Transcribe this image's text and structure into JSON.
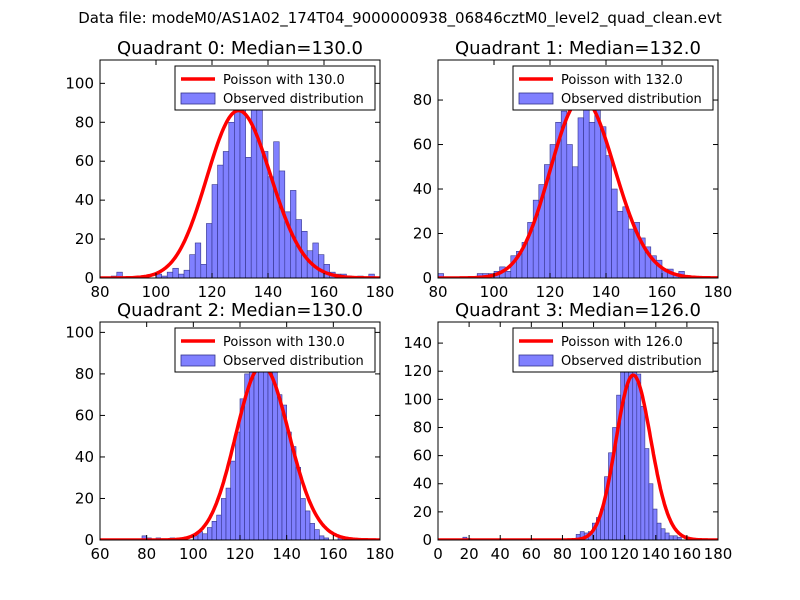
{
  "figure": {
    "suptitle": "Data file: modeM0/AS1A02_174T04_9000000938_06846cztM0_level2_quad_clean.evt"
  },
  "style": {
    "bar_fill": "#8080ff",
    "bar_edge": "#33338a",
    "curve_color": "#ff0000",
    "axes_color": "#000000"
  },
  "chart_data": [
    {
      "type": "bar",
      "title": "Quadrant 0: Median=130.0",
      "xlim": [
        80,
        180
      ],
      "ylim": [
        0,
        112
      ],
      "xticks": [
        80,
        100,
        120,
        140,
        160,
        180
      ],
      "yticks": [
        0,
        20,
        40,
        60,
        80,
        100
      ],
      "bin_start": 80,
      "bin_width": 2,
      "values": [
        0,
        0,
        1,
        3,
        0,
        0,
        0,
        0,
        0,
        0,
        2,
        1,
        3,
        5,
        2,
        4,
        12,
        18,
        7,
        28,
        48,
        58,
        65,
        80,
        95,
        108,
        62,
        90,
        100,
        65,
        52,
        70,
        55,
        34,
        45,
        30,
        24,
        14,
        18,
        12,
        7,
        3,
        2,
        2,
        1,
        0,
        1,
        0,
        2
      ],
      "poisson_mean": 130.0,
      "legend": [
        "Poisson with 130.0",
        "Observed distribution"
      ]
    },
    {
      "type": "bar",
      "title": "Quadrant 1: Median=132.0",
      "xlim": [
        80,
        180
      ],
      "ylim": [
        0,
        98
      ],
      "xticks": [
        80,
        100,
        120,
        140,
        160,
        180
      ],
      "yticks": [
        0,
        20,
        40,
        60,
        80
      ],
      "bin_start": 80,
      "bin_width": 2,
      "values": [
        2,
        0,
        0,
        0,
        0,
        0,
        0,
        2,
        2,
        2,
        3,
        5,
        3,
        10,
        12,
        16,
        25,
        35,
        42,
        51,
        60,
        70,
        75,
        60,
        50,
        72,
        78,
        70,
        84,
        68,
        55,
        40,
        30,
        32,
        22,
        25,
        18,
        14,
        10,
        8,
        4,
        4,
        2,
        3,
        0,
        0,
        0,
        0
      ],
      "poisson_mean": 132.0,
      "legend": [
        "Poisson with 132.0",
        "Observed distribution"
      ]
    },
    {
      "type": "bar",
      "title": "Quadrant 2: Median=130.0",
      "xlim": [
        60,
        180
      ],
      "ylim": [
        0,
        105
      ],
      "xticks": [
        60,
        80,
        100,
        120,
        140,
        160,
        180
      ],
      "yticks": [
        0,
        20,
        40,
        60,
        80,
        100
      ],
      "bin_start": 60,
      "bin_width": 2,
      "values": [
        0,
        0,
        0,
        0,
        0,
        0,
        0,
        0,
        0,
        2,
        1,
        0,
        1,
        0,
        0,
        1,
        0,
        1,
        0,
        0,
        2,
        4,
        3,
        6,
        9,
        12,
        20,
        25,
        38,
        52,
        68,
        80,
        92,
        98,
        95,
        100,
        88,
        85,
        70,
        65,
        52,
        45,
        35,
        20,
        14,
        8,
        5,
        2,
        1,
        0,
        0,
        1,
        0,
        0,
        0,
        0
      ],
      "poisson_mean": 130.0,
      "legend": [
        "Poisson with 130.0",
        "Observed distribution"
      ]
    },
    {
      "type": "bar",
      "title": "Quadrant 3: Median=126.0",
      "xlim": [
        0,
        180
      ],
      "ylim": [
        0,
        155
      ],
      "xticks": [
        0,
        20,
        40,
        60,
        80,
        100,
        120,
        140,
        160,
        180
      ],
      "yticks": [
        0,
        20,
        40,
        60,
        80,
        100,
        120,
        140
      ],
      "bin_start": 16,
      "bin_width": 2.6,
      "values": [
        2,
        1,
        0,
        0,
        0,
        0,
        0,
        0,
        0,
        0,
        0,
        0,
        0,
        0,
        0,
        0,
        0,
        0,
        0,
        0,
        0,
        0,
        0,
        0,
        0,
        0,
        0,
        0,
        4,
        6,
        5,
        6,
        12,
        16,
        22,
        45,
        62,
        80,
        103,
        120,
        138,
        143,
        130,
        118,
        95,
        65,
        40,
        22,
        12,
        8,
        5,
        3,
        3,
        2
      ],
      "poisson_mean": 126.0,
      "legend": [
        "Poisson with 126.0",
        "Observed distribution"
      ]
    }
  ]
}
